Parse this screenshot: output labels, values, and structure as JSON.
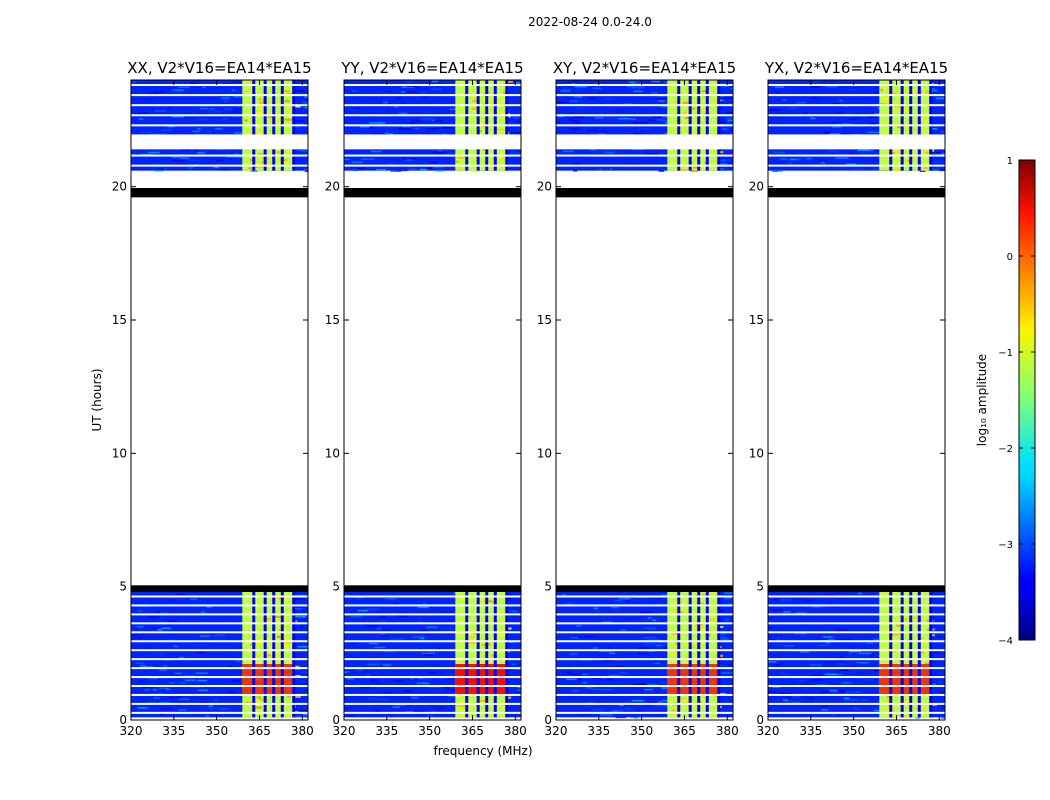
{
  "figure": {
    "suptitle": "2022-08-24 0.0-24.0",
    "xlabel": "frequency (MHz)",
    "ylabel": "UT (hours)",
    "colorbar_label": "log₁₀ amplitude",
    "colormap": "jet"
  },
  "chart_data": {
    "type": "heatmap",
    "xlim": [
      320,
      382
    ],
    "ylim": [
      0,
      24
    ],
    "x_ticks": [
      320,
      335,
      350,
      365,
      380
    ],
    "y_ticks": [
      0,
      5,
      10,
      15,
      20
    ],
    "colorbar": {
      "vmin": -4,
      "vmax": 1,
      "ticks": [
        -4,
        -3,
        -2,
        -1,
        0,
        1
      ]
    },
    "data_segments": [
      [
        0.1,
        4.8
      ],
      [
        20.6,
        24.0
      ]
    ],
    "flagged_bands_hours": [
      [
        4.8,
        5.05
      ],
      [
        19.6,
        19.95
      ]
    ],
    "rfi_band_mhz": [
      359,
      377
    ],
    "rfi_channels_mhz": [
      363,
      367,
      370,
      373,
      377
    ],
    "typical_log_amplitude": {
      "background": -3.2,
      "rfi_band": -1.2,
      "strong_rfi_0.9_2.1h": 0.4
    },
    "panels": [
      {
        "title": "XX, V2*V16=EA14*EA15",
        "pol": "XX"
      },
      {
        "title": "YY, V2*V16=EA14*EA15",
        "pol": "YY"
      },
      {
        "title": "XY, V2*V16=EA14*EA15",
        "pol": "XY"
      },
      {
        "title": "YX, V2*V16=EA14*EA15",
        "pol": "YX"
      }
    ]
  }
}
